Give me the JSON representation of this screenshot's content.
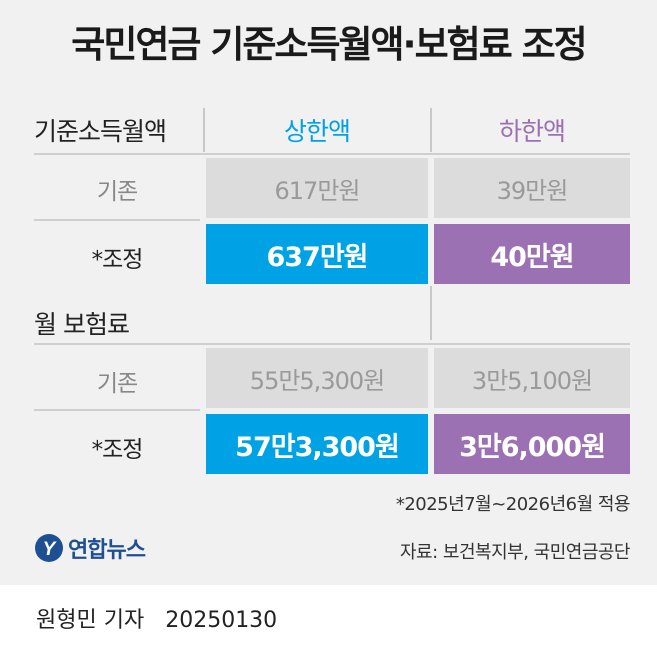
{
  "title": "국민연금 기준소득월액·보험료 조정",
  "chart_data": {
    "type": "table",
    "title": "국민연금 기준소득월액·보험료 조정",
    "columns": [
      "상한액",
      "하한액"
    ],
    "column_colors": [
      "#00a2e6",
      "#9b71b4"
    ],
    "sections": [
      {
        "label": "기준소득월액",
        "rows": [
          {
            "label": "기존",
            "values": [
              "617만원",
              "39만원"
            ]
          },
          {
            "label": "*조정",
            "values": [
              "637만원",
              "40만원"
            ]
          }
        ]
      },
      {
        "label": "월 보험료",
        "rows": [
          {
            "label": "기존",
            "values": [
              "55만5,300원",
              "3만5,100원"
            ]
          },
          {
            "label": "*조정",
            "values": [
              "57만3,300원",
              "3만6,000원"
            ]
          }
        ]
      }
    ]
  },
  "note": "*2025년7월~2026년6월 적용",
  "source": "자료: 보건복지부, 국민연금공단",
  "logo": {
    "text": "연합뉴스",
    "mark": "Y"
  },
  "credit": {
    "author": "원형민 기자",
    "date": "20250130"
  }
}
